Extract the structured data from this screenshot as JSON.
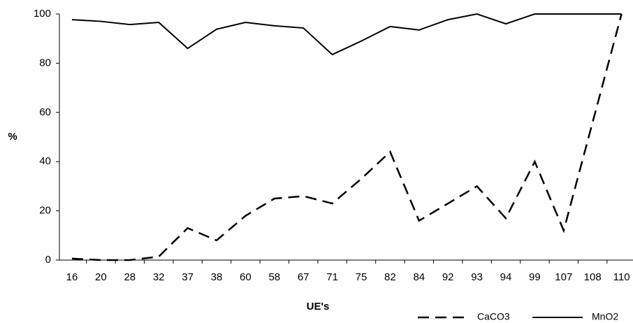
{
  "chart_data": {
    "type": "line",
    "xlabel": "UE's",
    "ylabel": "%",
    "categories": [
      "16",
      "20",
      "28",
      "32",
      "37",
      "38",
      "60",
      "58",
      "67",
      "71",
      "75",
      "82",
      "84",
      "92",
      "93",
      "94",
      "99",
      "107",
      "108",
      "110"
    ],
    "series": [
      {
        "name": "CaCO3",
        "color": "#000000",
        "line_style": "dashed",
        "values": [
          0.6,
          0,
          0,
          1.4,
          13,
          8,
          18,
          25,
          26,
          23,
          33,
          44,
          16,
          23,
          30,
          17,
          40,
          12,
          56,
          100
        ]
      },
      {
        "name": "MnO2",
        "color": "#000000",
        "line_style": "solid",
        "values": [
          97.7,
          97,
          95.7,
          96.6,
          86,
          93.8,
          96.6,
          95.2,
          94.3,
          83.5,
          89,
          94.9,
          93.5,
          97.7,
          100,
          96,
          100,
          100,
          100,
          100
        ]
      }
    ],
    "ylim": [
      0,
      100
    ],
    "yticks": [
      0,
      20,
      40,
      60,
      80,
      100
    ],
    "grid": false,
    "legend": "bottom-right"
  }
}
